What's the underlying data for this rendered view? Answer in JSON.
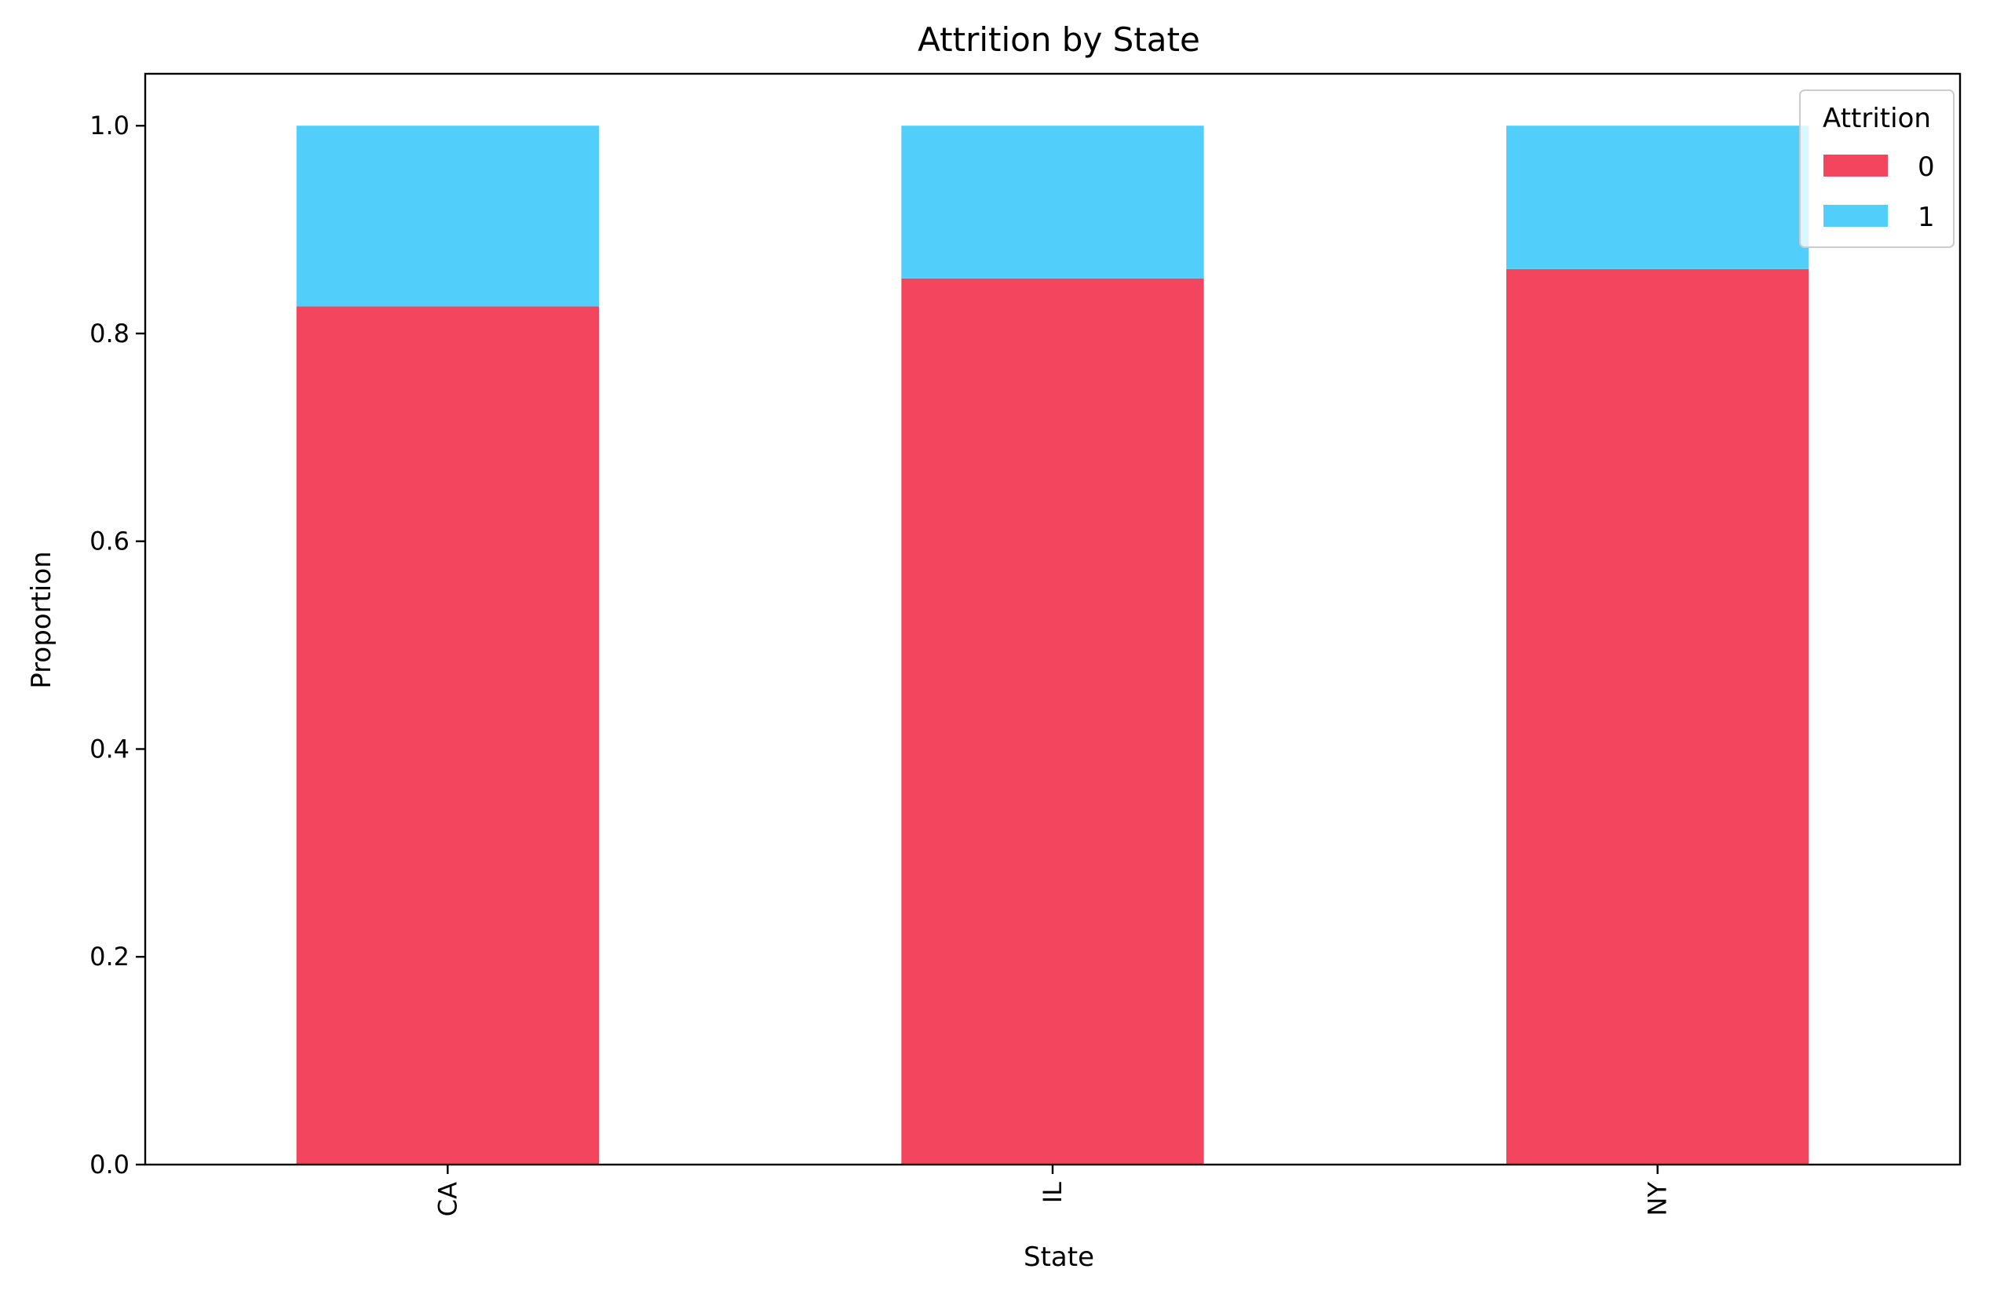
{
  "chart_data": {
    "type": "bar",
    "stacked": true,
    "title": "Attrition by State",
    "xlabel": "State",
    "ylabel": "Proportion",
    "categories": [
      "CA",
      "IL",
      "NY"
    ],
    "ylim": [
      0,
      1.05
    ],
    "yticks": [
      0.0,
      0.2,
      0.4,
      0.6,
      0.8,
      1.0
    ],
    "ytick_labels": [
      "0.0",
      "0.2",
      "0.4",
      "0.6",
      "0.8",
      "1.0"
    ],
    "legend": {
      "title": "Attrition",
      "placement": "top-right"
    },
    "series": [
      {
        "name": "0",
        "color": "#f4455e",
        "values": [
          0.826,
          0.853,
          0.862
        ]
      },
      {
        "name": "1",
        "color": "#51cffa",
        "values": [
          0.174,
          0.147,
          0.138
        ]
      }
    ],
    "grid": false
  }
}
